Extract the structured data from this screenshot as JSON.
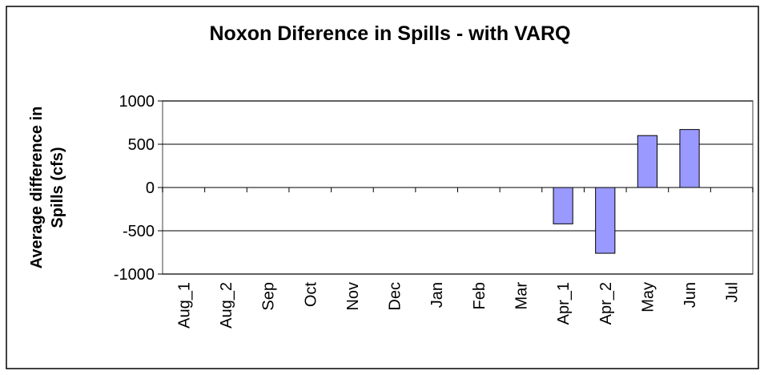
{
  "chart_data": {
    "type": "bar",
    "title": "Noxon Diference in Spills - with VARQ",
    "ylabel": [
      "Average difference in",
      "Spills (cfs)"
    ],
    "categories": [
      "Aug_1",
      "Aug_2",
      "Sep",
      "Oct",
      "Nov",
      "Dec",
      "Jan",
      "Feb",
      "Mar",
      "Apr_1",
      "Apr_2",
      "May",
      "Jun",
      "Jul"
    ],
    "values": [
      0,
      0,
      0,
      0,
      0,
      0,
      0,
      0,
      0,
      -420,
      -760,
      600,
      670,
      0
    ],
    "color": "#9999ff",
    "ylim": [
      -1000,
      1000
    ],
    "yticks": [
      -1000,
      -500,
      0,
      500,
      1000
    ],
    "grid": true
  }
}
